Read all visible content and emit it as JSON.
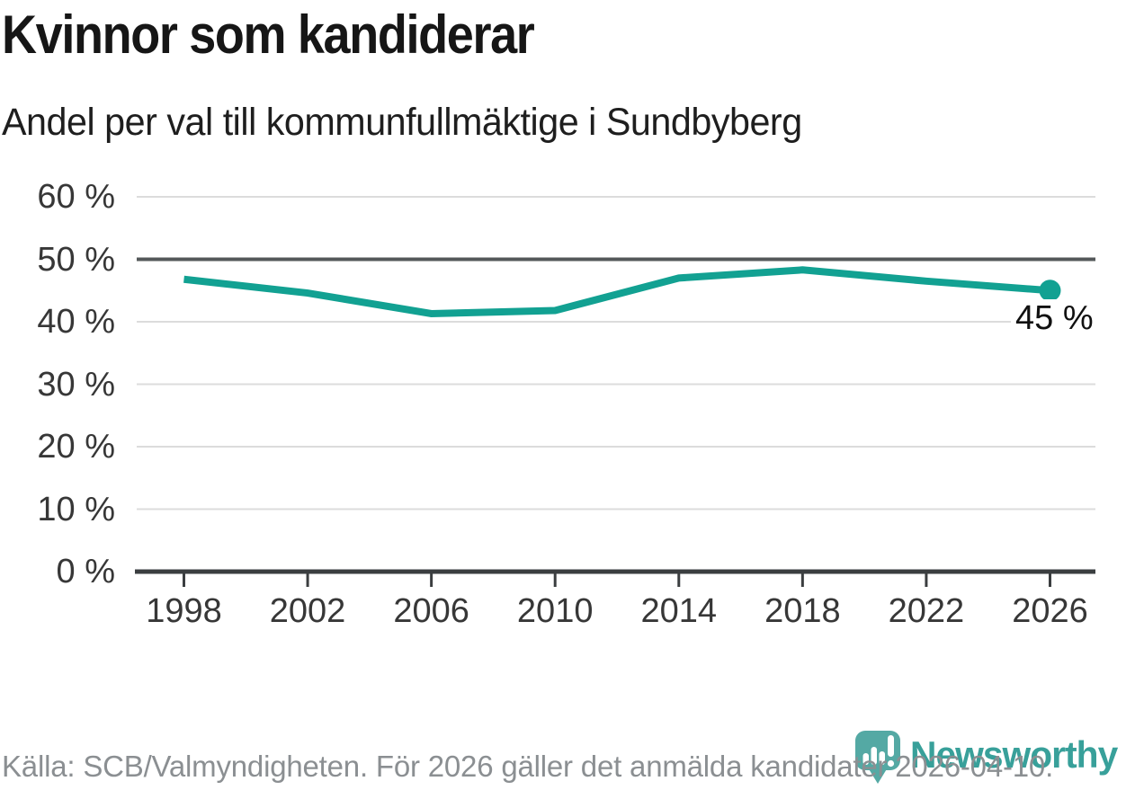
{
  "header": {
    "title": "Kvinnor som kandiderar",
    "subtitle": "Andel per val till kommunfullmäktige i Sundbyberg"
  },
  "chart_data": {
    "type": "line",
    "title": "Kvinnor som kandiderar",
    "subtitle": "Andel per val till kommunfullmäktige i Sundbyberg",
    "categories": [
      "1998",
      "2002",
      "2006",
      "2010",
      "2014",
      "2018",
      "2022",
      "2026"
    ],
    "values": [
      46.8,
      44.6,
      41.3,
      41.8,
      47.0,
      48.3,
      46.5,
      45.0
    ],
    "xlabel": "",
    "ylabel": "",
    "ylim": [
      0,
      60
    ],
    "ytick_step": 10,
    "ytick_suffix": " %",
    "grid": "horizontal",
    "emphasized_gridline": 50,
    "end_point_label": "45 %",
    "end_point_value": 45,
    "line_color": "#12a192",
    "legend": "none"
  },
  "footer": {
    "source": "Källa: SCB/Valmyndigheten. För 2026 gäller det anmälda kandidater 2026-04-10.",
    "brand": "Newsworthy",
    "brand_color": "#38a09a"
  },
  "icons": {
    "logo": "newsworthy-speech-bubble-bar-chart-icon"
  }
}
